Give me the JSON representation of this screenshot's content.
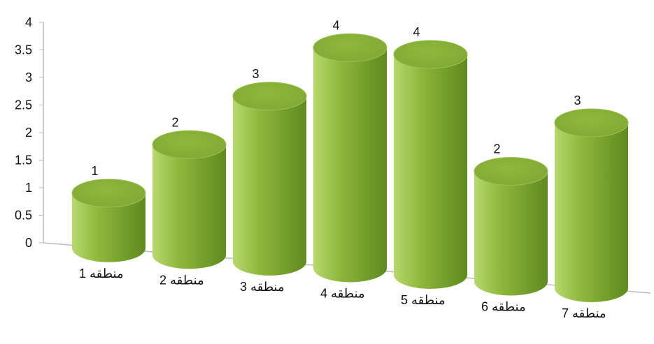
{
  "chart_data": {
    "type": "bar",
    "style": "3d-cylinder",
    "categories": [
      "منطقه 1",
      "منطقه 2",
      "منطقه 3",
      "منطقه 4",
      "منطقه 5",
      "منطقه 6",
      "منطقه 7"
    ],
    "values": [
      1,
      2,
      3,
      4,
      4,
      2,
      3
    ],
    "data_labels": [
      "1",
      "2",
      "3",
      "4",
      "4",
      "2",
      "3"
    ],
    "y_ticks": [
      "0",
      "0.5",
      "1",
      "1.5",
      "2",
      "2.5",
      "3",
      "3.5",
      "4"
    ],
    "ylim": [
      0,
      4
    ],
    "title": "",
    "xlabel": "",
    "ylabel": "",
    "grid": false,
    "legend": "none",
    "colors": {
      "bar": "#8fb83c",
      "bar_dark": "#5e8a1f",
      "bar_light": "#b8d86e",
      "top": "#7fa834",
      "axis": "#bbbbbb"
    }
  }
}
